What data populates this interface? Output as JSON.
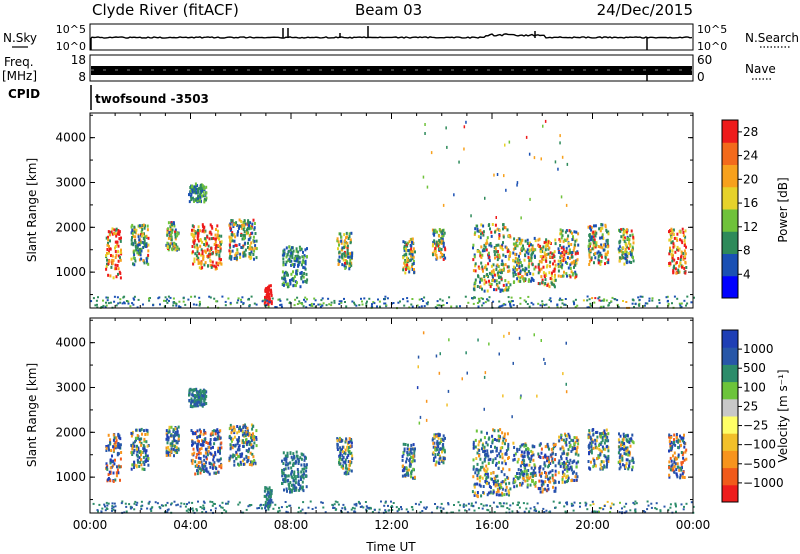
{
  "header": {
    "station": "Clyde River (fitACF)",
    "beam": "Beam 03",
    "date": "24/Dec/2015"
  },
  "strips": {
    "nsky_label": "N.Sky",
    "nsky_ticks": [
      "10^5",
      "10^0"
    ],
    "nsearch_label": "N.Search",
    "nsearch_ticks": [
      "10^5",
      "10^0"
    ],
    "freq_label": "Freq.",
    "freq_unit": "[MHz]",
    "freq_ticks": [
      "18",
      "8"
    ],
    "nave_label": "Nave",
    "nave_ticks": [
      "60",
      "0"
    ],
    "cpid_label": "CPID",
    "cpid_value": "twofsound  -3503"
  },
  "colors": {
    "power_scale": [
      "#0000ff",
      "#1a50b4",
      "#2e8a5a",
      "#6fc23a",
      "#e6d22a",
      "#f7a11d",
      "#f36a1b",
      "#ee1b1b"
    ],
    "velocity_scale": [
      "#1f3fb5",
      "#2857a8",
      "#2c8c6a",
      "#6cc43a",
      "#c8c8c8",
      "#ffff66",
      "#f2c02a",
      "#f7941d",
      "#f15a1b",
      "#ee1c1c"
    ]
  },
  "chart_data": [
    {
      "type": "heatmap",
      "name": "power",
      "ylabel": "Slant Range [km]",
      "yticks": [
        "1000",
        "2000",
        "3000",
        "4000"
      ],
      "ylim": [
        200,
        4550
      ],
      "xticks": [
        "00:00",
        "04:00",
        "08:00",
        "12:00",
        "16:00",
        "20:00",
        "00:00"
      ],
      "xlim_hours": [
        0,
        24
      ],
      "colorbar": {
        "label": "Power [dB]",
        "ticks": [
          "4",
          "8",
          "12",
          "16",
          "20",
          "24",
          "28"
        ],
        "range": [
          0,
          30
        ]
      }
    },
    {
      "type": "heatmap",
      "name": "velocity",
      "ylabel": "Slant Range [km]",
      "yticks": [
        "1000",
        "2000",
        "3000",
        "4000"
      ],
      "ylim": [
        200,
        4550
      ],
      "xticks": [
        "00:00",
        "04:00",
        "08:00",
        "12:00",
        "16:00",
        "20:00",
        "00:00"
      ],
      "xlim_hours": [
        0,
        24
      ],
      "xlabel": "Time UT",
      "colorbar": {
        "label": "Velocity  [m s⁻¹]",
        "ticks": [
          "1000",
          "500",
          "100",
          "25",
          "−25",
          "−100",
          "−500",
          "−1000"
        ]
      }
    }
  ]
}
